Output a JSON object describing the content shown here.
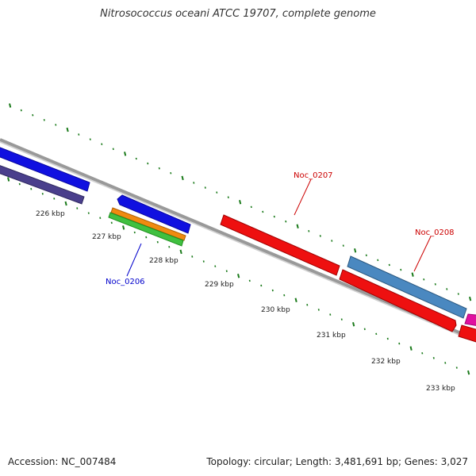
{
  "title": "Nitrosococcus oceani ATCC 19707, complete genome",
  "footer": {
    "accession": "Accession: NC_007484",
    "summary": "Topology: circular; Length: 3,481,691 bp; Genes: 3,027"
  },
  "ticks": [
    {
      "label": "226 kbp"
    },
    {
      "label": "227 kbp"
    },
    {
      "label": "228 kbp"
    },
    {
      "label": "229 kbp"
    },
    {
      "label": "230 kbp"
    },
    {
      "label": "231 kbp"
    },
    {
      "label": "232 kbp"
    },
    {
      "label": "233 kbp"
    }
  ],
  "gene_labels": [
    {
      "text": "Noc_0206",
      "color": "#0000cc"
    },
    {
      "text": "Noc_0207",
      "color": "#cc0000"
    },
    {
      "text": "Noc_0208",
      "color": "#cc0000"
    }
  ],
  "colors": {
    "backbone": "#888888",
    "tick": "#1a7a1a",
    "gene_blue": "#1010e0",
    "gene_purple": "#4a3f8c",
    "gene_orange": "#f08a10",
    "gene_green": "#40c040",
    "gene_red": "#ee1010",
    "gene_steelblue": "#4a88c0",
    "gene_pink": "#e010a0"
  }
}
